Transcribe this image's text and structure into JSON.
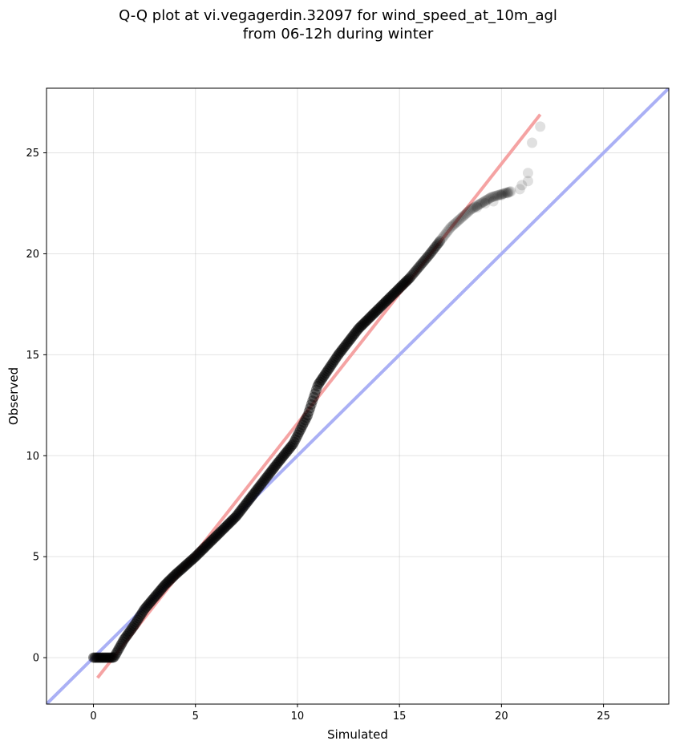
{
  "chart_data": {
    "type": "scatter",
    "title_line1": "Q-Q plot at vi.vegagerdin.32097 for wind_speed_at_10m_agl",
    "title_line2": "from 06-12h during winter",
    "xlabel": "Simulated",
    "ylabel": "Observed",
    "xlim": [
      -2.3,
      28.2
    ],
    "ylim": [
      -2.3,
      28.2
    ],
    "xticks": [
      0,
      5,
      10,
      15,
      20,
      25
    ],
    "yticks": [
      0,
      5,
      10,
      15,
      20,
      25
    ],
    "grid": true,
    "reference_line": {
      "name": "1:1",
      "color": "#aab0f5",
      "from": [
        -2.3,
        -2.3
      ],
      "to": [
        28.2,
        28.2
      ]
    },
    "fit_line": {
      "color": "#f5a3a3",
      "from": [
        0.2,
        -1.0
      ],
      "to": [
        21.9,
        26.9
      ]
    },
    "point_color": "#000000",
    "quantile_knots": [
      [
        0.0,
        0.0
      ],
      [
        0.5,
        0.0
      ],
      [
        1.0,
        0.0
      ],
      [
        1.5,
        0.9
      ],
      [
        2.0,
        1.6
      ],
      [
        2.5,
        2.4
      ],
      [
        3.0,
        3.0
      ],
      [
        3.5,
        3.6
      ],
      [
        4.0,
        4.1
      ],
      [
        5.0,
        5.0
      ],
      [
        6.0,
        6.0
      ],
      [
        7.0,
        7.0
      ],
      [
        8.0,
        8.3
      ],
      [
        9.0,
        9.6
      ],
      [
        9.8,
        10.6
      ],
      [
        10.5,
        12.0
      ],
      [
        11.0,
        13.5
      ],
      [
        12.0,
        15.0
      ],
      [
        13.0,
        16.3
      ],
      [
        14.5,
        17.8
      ],
      [
        15.5,
        18.8
      ],
      [
        16.5,
        20.0
      ],
      [
        17.5,
        21.3
      ],
      [
        18.5,
        22.2
      ],
      [
        19.5,
        22.8
      ],
      [
        20.5,
        23.1
      ]
    ],
    "tail_points": [
      [
        18.8,
        22.3
      ],
      [
        19.2,
        22.5
      ],
      [
        19.6,
        22.6
      ],
      [
        20.0,
        22.9
      ],
      [
        20.3,
        23.0
      ],
      [
        20.9,
        23.2
      ],
      [
        21.0,
        23.4
      ],
      [
        21.3,
        23.6
      ],
      [
        21.3,
        24.0
      ],
      [
        21.5,
        25.5
      ],
      [
        21.9,
        26.3
      ]
    ]
  }
}
